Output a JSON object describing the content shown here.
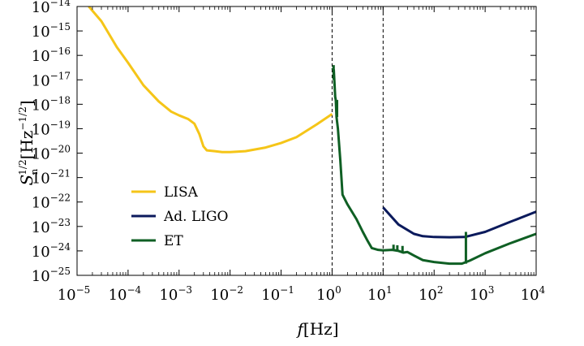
{
  "chart_data": {
    "type": "line",
    "xscale": "log",
    "yscale": "log",
    "xlabel": "f[Hz]",
    "ylabel": "S_n^{1/2}[Hz^{-1/2}]",
    "xlim": [
      1e-05,
      10000.0
    ],
    "ylim": [
      1e-25,
      1e-14
    ],
    "x_tick_exponents": [
      -5,
      -4,
      -3,
      -2,
      -1,
      0,
      1,
      2,
      3,
      4
    ],
    "y_tick_exponents": [
      -25,
      -24,
      -23,
      -22,
      -21,
      -20,
      -19,
      -18,
      -17,
      -16,
      -15,
      -14
    ],
    "tick_base": "10",
    "vlines": [
      1,
      10
    ],
    "vline_style": "dashed",
    "grid": false,
    "legend_position": "lower-left",
    "series": [
      {
        "name": "LISA",
        "color": "#F5C518",
        "points": [
          [
            1.7e-05,
            1e-14
          ],
          [
            3e-05,
            2.5e-15
          ],
          [
            6e-05,
            2.2e-16
          ],
          [
            0.0001,
            5e-17
          ],
          [
            0.0002,
            6e-18
          ],
          [
            0.0004,
            1.3e-18
          ],
          [
            0.0007,
            5e-19
          ],
          [
            0.001,
            3.5e-19
          ],
          [
            0.0015,
            2.5e-19
          ],
          [
            0.002,
            1.6e-19
          ],
          [
            0.0025,
            6e-20
          ],
          [
            0.003,
            1.9e-20
          ],
          [
            0.0035,
            1.3e-20
          ],
          [
            0.005,
            1.2e-20
          ],
          [
            0.007,
            1.1e-20
          ],
          [
            0.01,
            1.1e-20
          ],
          [
            0.02,
            1.2e-20
          ],
          [
            0.05,
            1.7e-20
          ],
          [
            0.1,
            2.6e-20
          ],
          [
            0.2,
            4.5e-20
          ],
          [
            0.5,
            1.5e-19
          ],
          [
            1,
            4e-19
          ]
        ]
      },
      {
        "name": "Ad. LIGO",
        "color": "#0B1A5C",
        "points": [
          [
            10,
            6e-23
          ],
          [
            20,
            1.2e-23
          ],
          [
            40,
            5e-24
          ],
          [
            60,
            4e-24
          ],
          [
            100,
            3.7e-24
          ],
          [
            200,
            3.6e-24
          ],
          [
            400,
            3.7e-24
          ],
          [
            1000,
            6e-24
          ],
          [
            3000,
            1.5e-23
          ],
          [
            10000,
            4e-23
          ]
        ]
      },
      {
        "name": "ET",
        "color": "#0F5F24",
        "points": [
          [
            1,
            3e-17
          ],
          [
            1.08,
            2.5e-17
          ],
          [
            1.15,
            2e-18
          ],
          [
            1.18,
            1.5e-18
          ],
          [
            1.22,
            3e-19
          ],
          [
            1.3,
            1e-19
          ],
          [
            1.45,
            5e-21
          ],
          [
            1.6,
            2e-22
          ],
          [
            2,
            8e-23
          ],
          [
            3,
            2e-23
          ],
          [
            4,
            6e-24
          ],
          [
            5,
            2.5e-24
          ],
          [
            6,
            1.3e-24
          ],
          [
            8,
            1.1e-24
          ],
          [
            10,
            1.05e-24
          ],
          [
            15,
            1.1e-24
          ],
          [
            20,
            1e-24
          ],
          [
            25,
            8.5e-25
          ],
          [
            30,
            9e-25
          ],
          [
            40,
            6.5e-25
          ],
          [
            60,
            4.2e-25
          ],
          [
            100,
            3.5e-25
          ],
          [
            200,
            3e-25
          ],
          [
            350,
            3e-25
          ],
          [
            500,
            4e-25
          ],
          [
            1000,
            8e-25
          ],
          [
            3000,
            2e-24
          ],
          [
            10000,
            5e-24
          ]
        ]
      }
    ],
    "spikes": [
      {
        "series": "ET",
        "x": 1.07,
        "y_from": 1e-17,
        "y_to": 4e-17
      },
      {
        "series": "ET",
        "x": 1.25,
        "y_from": 3e-19,
        "y_to": 1.5e-18
      },
      {
        "series": "ET",
        "x": 16,
        "y_from": 1.1e-24,
        "y_to": 1.8e-24
      },
      {
        "series": "ET",
        "x": 19,
        "y_from": 1.05e-24,
        "y_to": 1.7e-24
      },
      {
        "series": "ET",
        "x": 24,
        "y_from": 9e-25,
        "y_to": 1.6e-24
      },
      {
        "series": "ET",
        "x": 420,
        "y_from": 3e-25,
        "y_to": 6e-24
      }
    ],
    "legend": [
      "LISA",
      "Ad. LIGO",
      "ET"
    ]
  }
}
